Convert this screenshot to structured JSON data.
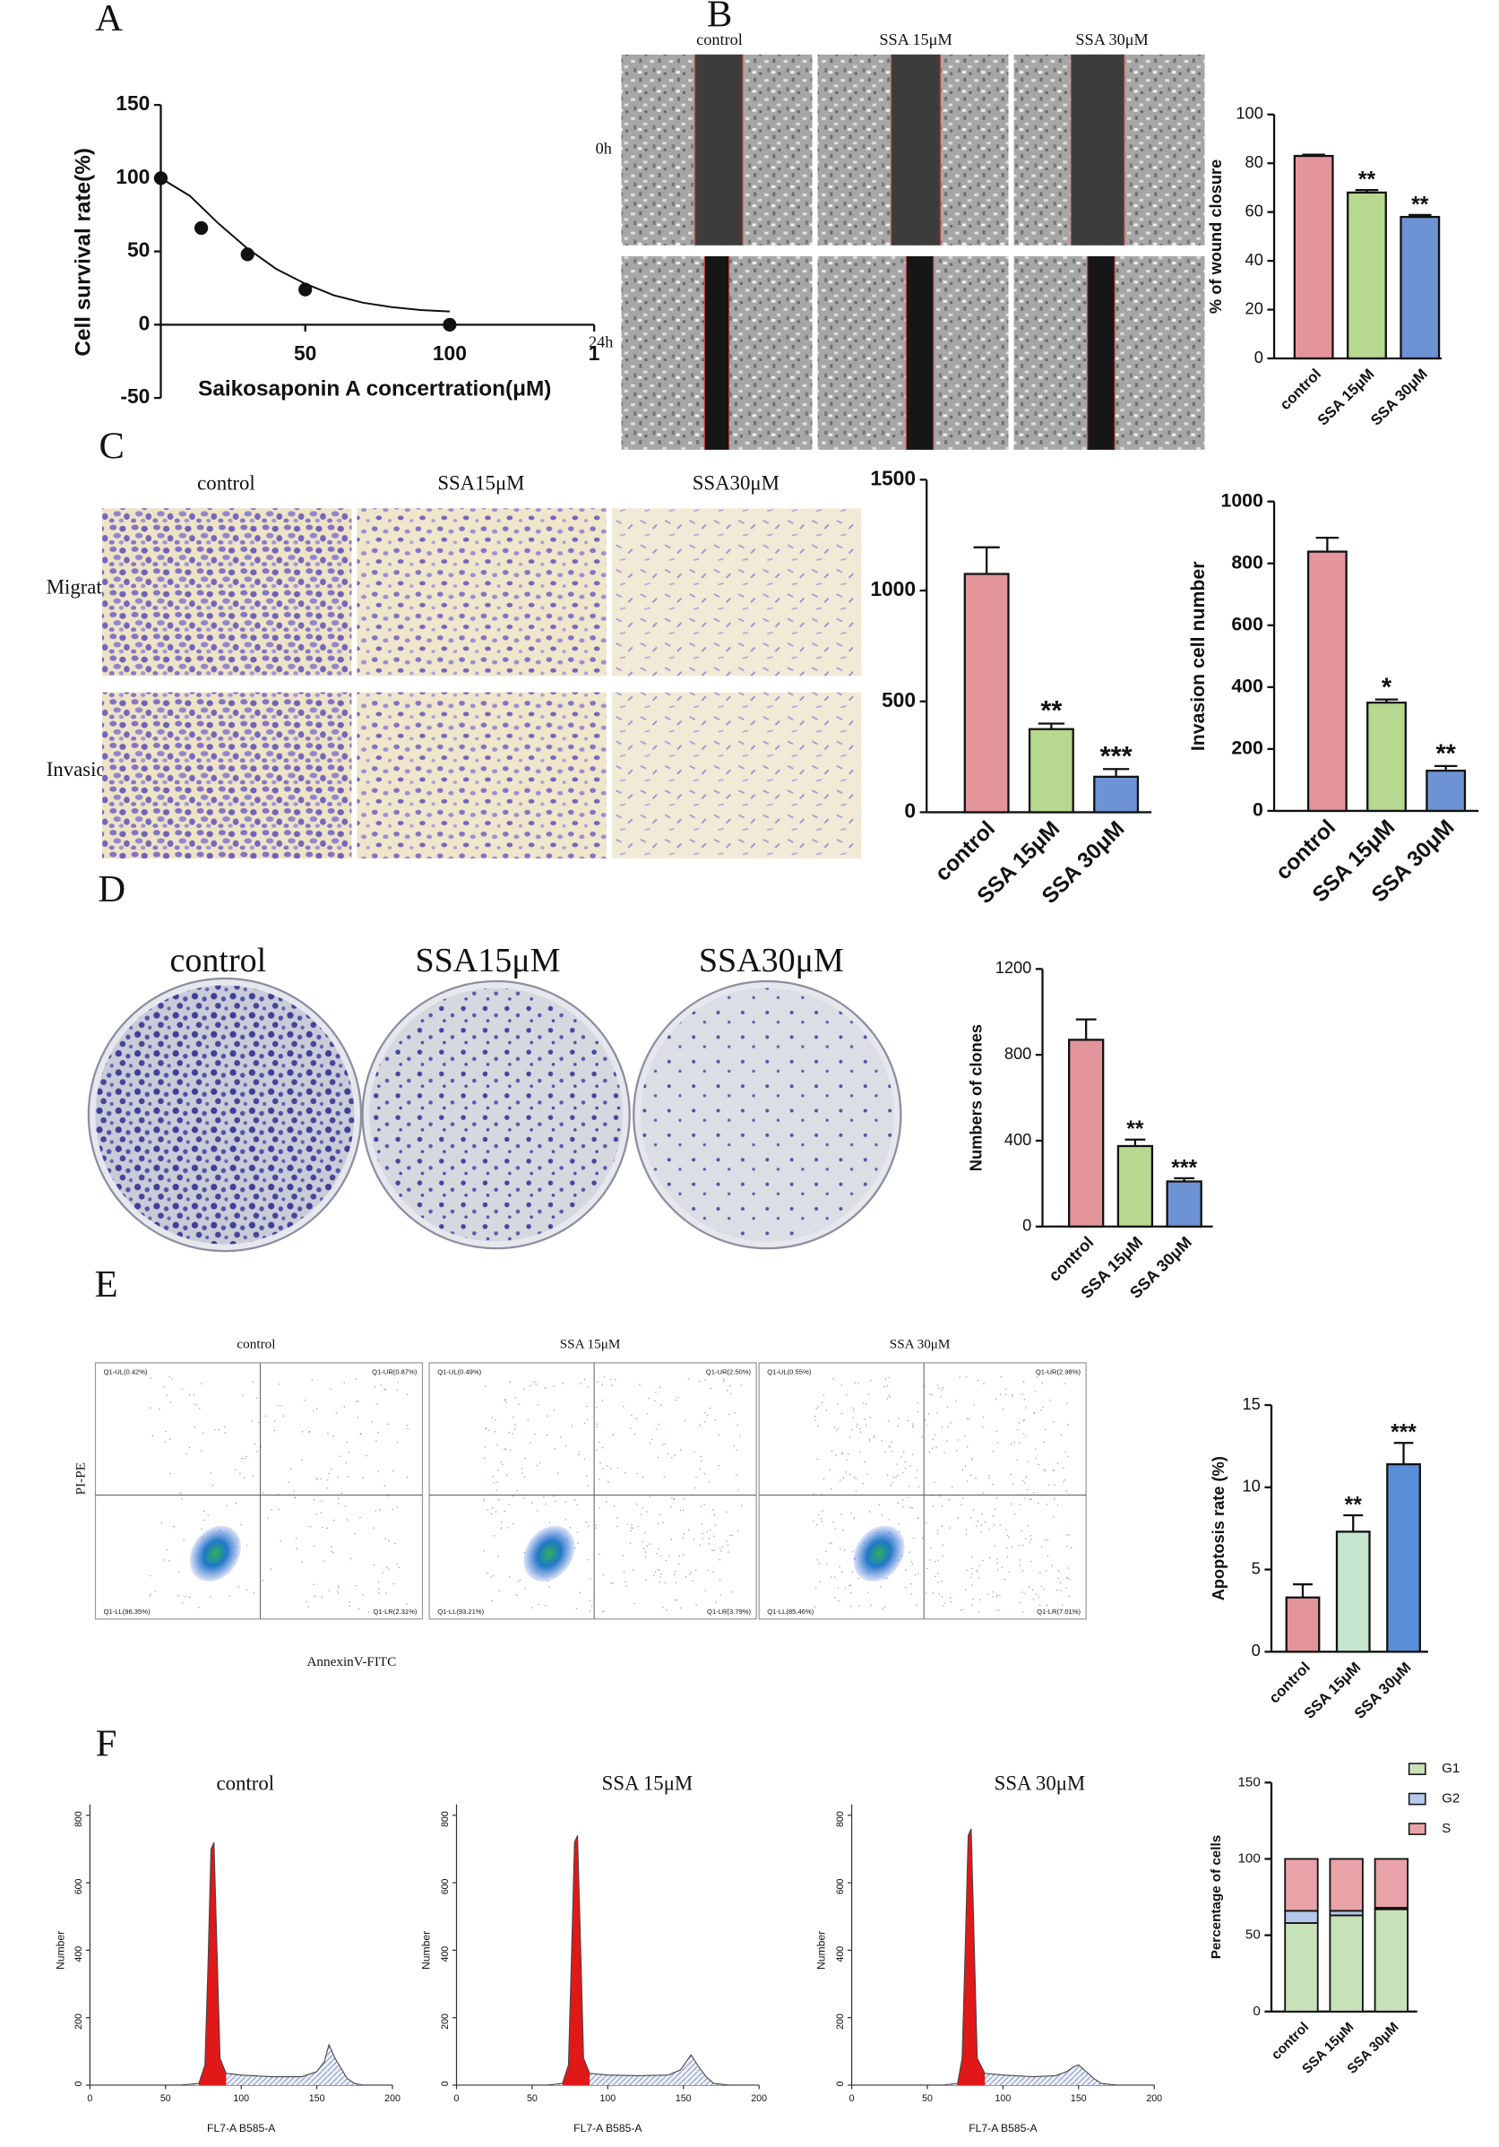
{
  "panels": {
    "labels": [
      "A",
      "B",
      "C",
      "D",
      "E",
      "F"
    ],
    "B": {
      "columns": [
        "control",
        "SSA 15μM",
        "SSA 30μM"
      ],
      "rows": [
        "0h",
        "24h"
      ]
    },
    "C": {
      "columns": [
        "control",
        "SSA15μM",
        "SSA30μM"
      ],
      "rows": [
        "Migration",
        "Invasion"
      ]
    },
    "D": {
      "columns": [
        "control",
        "SSA15μM",
        "SSA30μM"
      ]
    },
    "E": {
      "columns": [
        "control",
        "SSA 15μM",
        "SSA 30μM"
      ],
      "ylabel": "PI-PE",
      "xlabel": "AnnexinV-FITC",
      "quadrants": [
        [
          "Q1-UL(0.42%)",
          "Q1-UR(0.87%)",
          "Q1-LL(96.35%)",
          "Q1-LR(2.31%)"
        ],
        [
          "Q1-UL(0.49%)",
          "Q1-UR(2.50%)",
          "Q1-LL(93.21%)",
          "Q1-LR(3.79%)"
        ],
        [
          "Q1-UL(0.55%)",
          "Q1-UR(2.98%)",
          "Q1-LL(85.46%)",
          "Q1-LR(7.01%)"
        ]
      ]
    }
  },
  "chart_data": [
    {
      "type": "scatter",
      "ylabel": "Cell survival rate(%)",
      "xlabel": "Saikosaponin A concertration(μM)",
      "points": {
        "x": [
          0,
          14,
          30,
          50,
          100
        ],
        "values": [
          100,
          66,
          48,
          24,
          0
        ]
      },
      "fit": {
        "x": [
          0,
          10,
          20,
          30,
          40,
          50,
          60,
          70,
          80,
          90,
          100
        ],
        "values": [
          100,
          88,
          69,
          52,
          38,
          28,
          20,
          15,
          12,
          10,
          9
        ]
      },
      "xlim": [
        0,
        150
      ],
      "xticks": [
        50,
        100,
        {
          "value": 150,
          "label": "1"
        }
      ],
      "ylim": [
        -50,
        150
      ],
      "yticks": [
        -50,
        0,
        50,
        100,
        150
      ]
    },
    {
      "type": "bar",
      "ylabel": "% of wound closure",
      "categories": [
        "control",
        "SSA 15μM",
        "SSA 30μM"
      ],
      "values": [
        83,
        68,
        58
      ],
      "errors": [
        0.5,
        1,
        0.8
      ],
      "annotations": [
        null,
        "**",
        "**"
      ],
      "colors": [
        "#e3959b",
        "#b7d88f",
        "#6e93d4"
      ],
      "ylim": [
        0,
        100
      ],
      "yticks": [
        0,
        20,
        40,
        60,
        80,
        100
      ]
    },
    {
      "type": "bar",
      "categories": [
        "control",
        "SSA 15μM",
        "SSA 30μM"
      ],
      "values": [
        1075,
        375,
        160
      ],
      "errors": [
        120,
        25,
        35
      ],
      "annotations": [
        null,
        "**",
        "***"
      ],
      "colors": [
        "#e3959b",
        "#b7d88f",
        "#6e93d4"
      ],
      "ylim": [
        0,
        1500
      ],
      "yticks": [
        0,
        500,
        1000,
        1500
      ]
    },
    {
      "type": "bar",
      "ylabel": "Invasion cell number",
      "categories": [
        "control",
        "SSA 15μM",
        "SSA 30μM"
      ],
      "values": [
        838,
        350,
        130
      ],
      "errors": [
        45,
        10,
        15
      ],
      "annotations": [
        null,
        "*",
        "**"
      ],
      "colors": [
        "#e3959b",
        "#b7d88f",
        "#6e93d4"
      ],
      "ylim": [
        0,
        1000
      ],
      "yticks": [
        0,
        200,
        400,
        600,
        800,
        1000
      ]
    },
    {
      "type": "bar",
      "ylabel": "Numbers of clones",
      "categories": [
        "control",
        "SSA 15μM",
        "SSA 30μM"
      ],
      "values": [
        870,
        375,
        210
      ],
      "errors": [
        95,
        30,
        15
      ],
      "annotations": [
        null,
        "**",
        "***"
      ],
      "colors": [
        "#e3959b",
        "#b7d88f",
        "#6e93d4"
      ],
      "ylim": [
        0,
        1200
      ],
      "yticks": [
        0,
        400,
        800,
        1200
      ]
    },
    {
      "type": "bar",
      "ylabel": "Apoptosis rate (%)",
      "categories": [
        "control",
        "SSA 15μM",
        "SSA 30μM"
      ],
      "values": [
        3.3,
        7.3,
        11.4
      ],
      "errors": [
        0.8,
        1.0,
        1.3
      ],
      "annotations": [
        null,
        "**",
        "***"
      ],
      "colors": [
        "#e3959b",
        "#c5e6cf",
        "#5b8ed8"
      ],
      "ylim": [
        0,
        15
      ],
      "yticks": [
        0,
        5,
        10,
        15
      ]
    },
    {
      "type": "stacked-bar",
      "ylabel": "Percentage of cells",
      "categories": [
        "control",
        "SSA 15μM",
        "SSA 30μM"
      ],
      "series": [
        {
          "name": "G1",
          "color": "#c7e1b8",
          "values": [
            58,
            63,
            67
          ]
        },
        {
          "name": "G2",
          "color": "#b3c8ea",
          "values": [
            8,
            3,
            1
          ]
        },
        {
          "name": "S",
          "color": "#e8a2a8",
          "values": [
            34,
            34,
            32
          ]
        }
      ],
      "ylim": [
        0,
        150
      ],
      "yticks": [
        0,
        50,
        100,
        150
      ],
      "legend": "top-right"
    },
    {
      "type": "line",
      "title": "control",
      "xlabel": "FL7-A B585-A",
      "ylabel": "Number",
      "x": [
        60,
        72,
        76,
        78,
        80,
        82,
        84,
        86,
        90,
        100,
        120,
        140,
        150,
        155,
        158,
        162,
        166,
        170,
        175,
        180
      ],
      "values": [
        0,
        5,
        60,
        350,
        700,
        720,
        400,
        80,
        35,
        30,
        25,
        25,
        40,
        70,
        120,
        80,
        50,
        20,
        5,
        0
      ],
      "xlim": [
        0,
        200
      ],
      "xticks": [
        0,
        50,
        100,
        150,
        200
      ],
      "ylim": [
        0,
        800
      ],
      "yticks": [
        0,
        200,
        400,
        600,
        800
      ]
    },
    {
      "type": "line",
      "title": "SSA 15μM",
      "xlabel": "FL7-A B585-A",
      "ylabel": "Number",
      "x": [
        60,
        70,
        74,
        76,
        78,
        80,
        82,
        84,
        88,
        100,
        120,
        140,
        148,
        152,
        155,
        160,
        165,
        170,
        180
      ],
      "values": [
        0,
        5,
        60,
        380,
        720,
        740,
        420,
        80,
        35,
        30,
        28,
        30,
        45,
        70,
        90,
        55,
        25,
        5,
        0
      ],
      "xlim": [
        0,
        200
      ],
      "xticks": [
        0,
        50,
        100,
        150,
        200
      ],
      "ylim": [
        0,
        800
      ],
      "yticks": [
        0,
        200,
        400,
        600,
        800
      ]
    },
    {
      "type": "line",
      "title": "SSA 30μM",
      "xlabel": "FL7-A B585-A",
      "ylabel": "Number",
      "x": [
        60,
        70,
        73,
        75,
        77,
        79,
        81,
        83,
        88,
        100,
        120,
        135,
        142,
        147,
        150,
        155,
        160,
        165,
        175
      ],
      "values": [
        0,
        5,
        80,
        400,
        740,
        760,
        420,
        80,
        35,
        30,
        25,
        28,
        40,
        55,
        60,
        40,
        20,
        5,
        0
      ],
      "xlim": [
        0,
        200
      ],
      "xticks": [
        0,
        50,
        100,
        150,
        200
      ],
      "ylim": [
        0,
        800
      ],
      "yticks": [
        0,
        200,
        400,
        600,
        800
      ]
    }
  ]
}
